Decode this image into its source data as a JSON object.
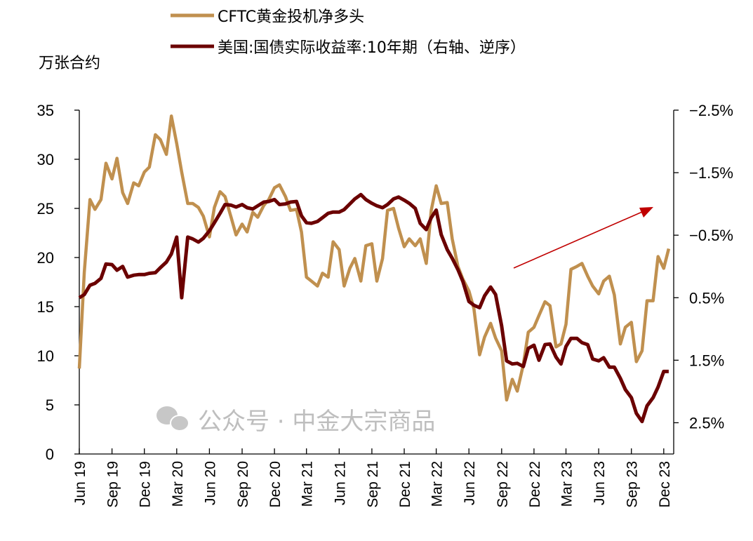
{
  "chart_data": {
    "type": "line",
    "title": "",
    "y_left_label": "万张合约",
    "y_left_lim": [
      0,
      35
    ],
    "y_left_ticks": [
      "0",
      "5",
      "10",
      "15",
      "20",
      "25",
      "30",
      "35"
    ],
    "y_right_lim": [
      -2.5,
      3.0
    ],
    "y_right_inverted": true,
    "y_right_ticks": [
      "-2.5%",
      "-1.5%",
      "-0.5%",
      "0.5%",
      "1.5%",
      "2.5%"
    ],
    "x_lim": [
      "2019-06-01",
      "2023-12-29"
    ],
    "x_ticks": [
      {
        "date": "2019-06-01",
        "label": "Jun 19"
      },
      {
        "date": "2019-09-01",
        "label": "Sep 19"
      },
      {
        "date": "2019-12-01",
        "label": "Dec 19"
      },
      {
        "date": "2020-03-01",
        "label": "Mar 20"
      },
      {
        "date": "2020-06-01",
        "label": "Jun 20"
      },
      {
        "date": "2020-09-01",
        "label": "Sep 20"
      },
      {
        "date": "2020-12-01",
        "label": "Dec 20"
      },
      {
        "date": "2021-03-01",
        "label": "Mar 21"
      },
      {
        "date": "2021-06-01",
        "label": "Jun 21"
      },
      {
        "date": "2021-09-01",
        "label": "Sep 21"
      },
      {
        "date": "2021-12-01",
        "label": "Dec 21"
      },
      {
        "date": "2022-03-01",
        "label": "Mar 22"
      },
      {
        "date": "2022-06-01",
        "label": "Jun 22"
      },
      {
        "date": "2022-09-01",
        "label": "Sep 22"
      },
      {
        "date": "2022-12-01",
        "label": "Dec 22"
      },
      {
        "date": "2023-03-01",
        "label": "Mar 23"
      },
      {
        "date": "2023-06-01",
        "label": "Jun 23"
      },
      {
        "date": "2023-09-01",
        "label": "Sep 23"
      },
      {
        "date": "2023-12-01",
        "label": "Dec 23"
      }
    ],
    "grid": false,
    "legend_position": "top",
    "x": [
      "2019-06-01",
      "2019-06-15",
      "2019-07-01",
      "2019-07-15",
      "2019-08-01",
      "2019-08-15",
      "2019-09-01",
      "2019-09-15",
      "2019-10-01",
      "2019-10-15",
      "2019-11-01",
      "2019-11-15",
      "2019-12-01",
      "2019-12-15",
      "2020-01-01",
      "2020-01-15",
      "2020-02-01",
      "2020-02-15",
      "2020-03-01",
      "2020-03-15",
      "2020-04-01",
      "2020-04-15",
      "2020-05-01",
      "2020-05-15",
      "2020-06-01",
      "2020-06-15",
      "2020-07-01",
      "2020-07-15",
      "2020-08-01",
      "2020-08-15",
      "2020-09-01",
      "2020-09-15",
      "2020-10-01",
      "2020-10-15",
      "2020-11-01",
      "2020-11-15",
      "2020-12-01",
      "2020-12-15",
      "2021-01-01",
      "2021-01-15",
      "2021-02-01",
      "2021-02-15",
      "2021-03-01",
      "2021-03-15",
      "2021-04-01",
      "2021-04-15",
      "2021-05-01",
      "2021-05-15",
      "2021-06-01",
      "2021-06-15",
      "2021-07-01",
      "2021-07-15",
      "2021-08-01",
      "2021-08-15",
      "2021-09-01",
      "2021-09-15",
      "2021-10-01",
      "2021-10-15",
      "2021-11-01",
      "2021-11-15",
      "2021-12-01",
      "2021-12-15",
      "2022-01-01",
      "2022-01-15",
      "2022-02-01",
      "2022-02-15",
      "2022-03-01",
      "2022-03-15",
      "2022-04-01",
      "2022-04-15",
      "2022-05-01",
      "2022-05-15",
      "2022-06-01",
      "2022-06-15",
      "2022-07-01",
      "2022-07-15",
      "2022-08-01",
      "2022-08-15",
      "2022-09-01",
      "2022-09-15",
      "2022-10-01",
      "2022-10-15",
      "2022-11-01",
      "2022-11-15",
      "2022-12-01",
      "2022-12-15",
      "2023-01-01",
      "2023-01-15",
      "2023-02-01",
      "2023-02-15",
      "2023-03-01",
      "2023-03-15",
      "2023-04-01",
      "2023-04-15",
      "2023-05-01",
      "2023-05-15",
      "2023-06-01",
      "2023-06-15",
      "2023-07-01",
      "2023-07-15",
      "2023-08-01",
      "2023-08-15",
      "2023-09-01",
      "2023-09-15",
      "2023-10-01",
      "2023-10-15",
      "2023-11-01",
      "2023-11-15",
      "2023-12-01",
      "2023-12-15"
    ],
    "series": [
      {
        "name": "CFTC黄金投机净多头",
        "axis": "left",
        "color": "#C0904F",
        "values": [
          8.7,
          18.5,
          25.9,
          24.9,
          25.9,
          29.6,
          28.0,
          30.1,
          26.6,
          25.5,
          27.6,
          27.3,
          28.7,
          29.2,
          32.5,
          32.0,
          30.5,
          34.4,
          31.6,
          28.7,
          25.5,
          25.5,
          25.1,
          24.2,
          22.1,
          25.1,
          26.7,
          26.2,
          24.1,
          22.3,
          23.4,
          22.6,
          24.6,
          24.1,
          25.3,
          25.9,
          27.1,
          27.4,
          26.2,
          24.8,
          24.9,
          22.6,
          18.0,
          17.6,
          17.1,
          18.4,
          18.0,
          21.6,
          20.8,
          17.1,
          18.9,
          19.9,
          17.6,
          21.2,
          21.4,
          17.6,
          19.9,
          24.8,
          25.0,
          23.0,
          21.1,
          21.9,
          21.2,
          21.9,
          19.4,
          24.8,
          27.3,
          25.5,
          25.6,
          21.9,
          19.1,
          17.8,
          16.6,
          14.8,
          10.1,
          11.9,
          13.3,
          11.8,
          10.5,
          5.5,
          7.6,
          6.4,
          9.1,
          12.4,
          12.9,
          14.1,
          15.5,
          15.1,
          10.9,
          11.2,
          13.2,
          18.8,
          19.1,
          19.4,
          18.1,
          17.1,
          16.3,
          17.6,
          18.1,
          16.2,
          11.2,
          12.9,
          13.4,
          9.4,
          10.5,
          15.6,
          15.6,
          20.1,
          18.9,
          20.9
        ]
      },
      {
        "name": "美国:国债实际收益率:10年期（右轴、逆序）",
        "axis": "right",
        "color": "#6B0000",
        "values": [
          0.5,
          0.45,
          0.3,
          0.27,
          0.19,
          -0.04,
          -0.03,
          0.06,
          0.0,
          0.17,
          0.14,
          0.13,
          0.13,
          0.11,
          0.1,
          0.02,
          -0.07,
          -0.2,
          -0.47,
          0.5,
          -0.47,
          -0.44,
          -0.39,
          -0.45,
          -0.57,
          -0.7,
          -0.85,
          -0.99,
          -0.98,
          -0.95,
          -0.99,
          -0.94,
          -0.92,
          -0.97,
          -1.03,
          -1.04,
          -1.07,
          -0.99,
          -1.0,
          -1.03,
          -1.04,
          -0.81,
          -0.7,
          -0.69,
          -0.72,
          -0.78,
          -0.85,
          -0.87,
          -0.87,
          -0.91,
          -1.0,
          -1.08,
          -1.15,
          -1.07,
          -1.01,
          -0.97,
          -0.94,
          -0.99,
          -1.08,
          -1.11,
          -1.06,
          -1.01,
          -0.93,
          -0.69,
          -0.59,
          -0.78,
          -0.9,
          -0.51,
          -0.27,
          -0.13,
          0.05,
          0.24,
          0.56,
          0.62,
          0.66,
          0.47,
          0.33,
          0.45,
          0.95,
          1.51,
          1.56,
          1.55,
          1.6,
          1.31,
          1.26,
          1.5,
          1.25,
          1.24,
          1.45,
          1.56,
          1.28,
          1.15,
          1.15,
          1.22,
          1.25,
          1.48,
          1.51,
          1.46,
          1.61,
          1.61,
          1.79,
          1.97,
          2.1,
          2.35,
          2.48,
          2.23,
          2.1,
          1.93,
          1.68,
          1.68
        ]
      }
    ],
    "annotation_arrow_color": "#C00000"
  },
  "watermark": {
    "text": "公众号 · 中金大宗商品",
    "icon": "wechat-icon"
  }
}
